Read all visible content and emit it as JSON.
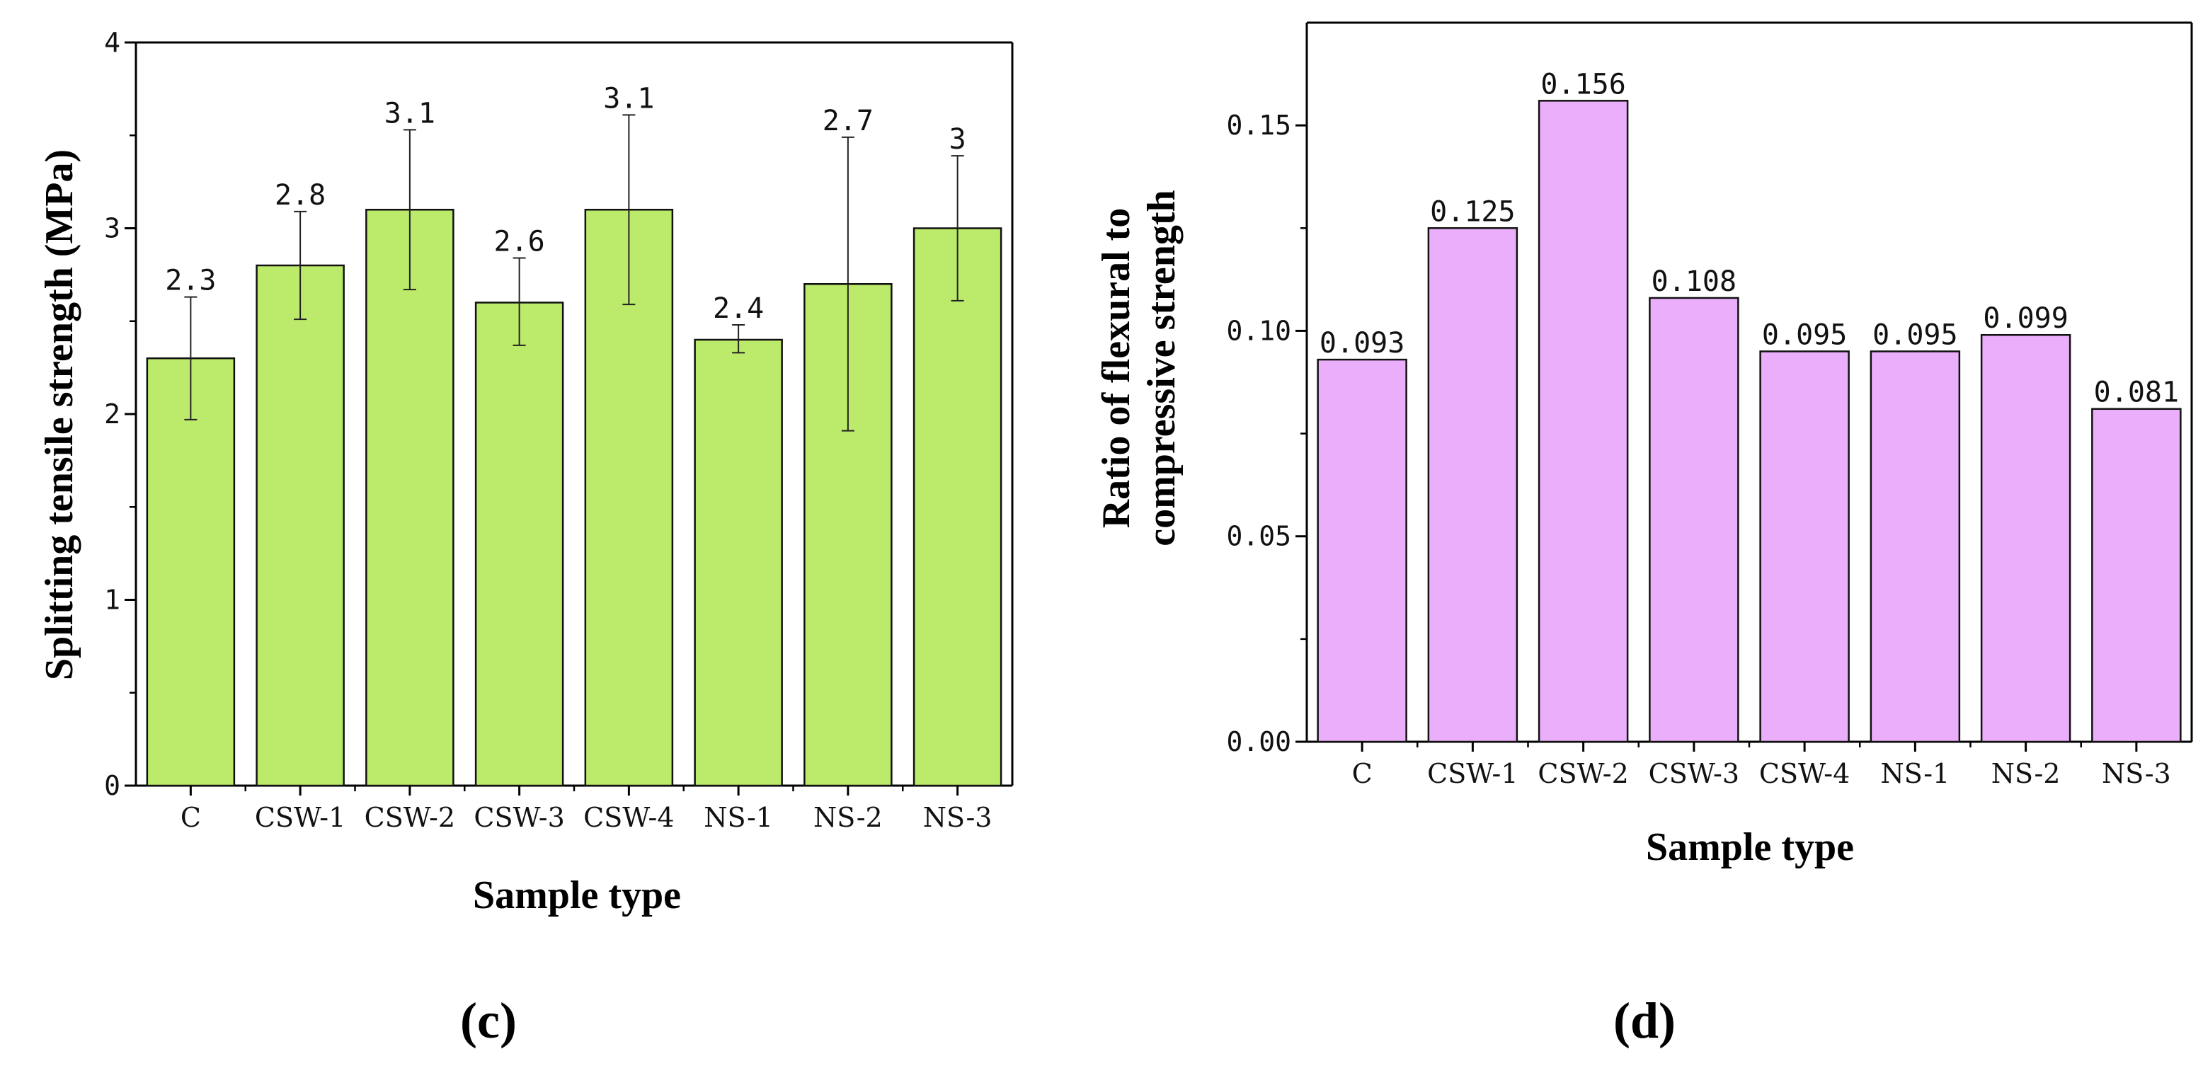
{
  "chart_data": [
    {
      "type": "bar",
      "panel_label": "(c)",
      "title": "",
      "xlabel": "Sample type",
      "ylabel": "Splitting tensile strength (MPa)",
      "ylim": [
        0,
        4
      ],
      "yticks": [
        0,
        1,
        2,
        3,
        4
      ],
      "ytick_labels": [
        "0",
        "1",
        "2",
        "3",
        "4"
      ],
      "categories": [
        "C",
        "CSW-1",
        "CSW-2",
        "CSW-3",
        "CSW-4",
        "NS-1",
        "NS-2",
        "NS-3"
      ],
      "values": [
        2.3,
        2.8,
        3.1,
        2.6,
        3.1,
        2.4,
        2.7,
        3.0
      ],
      "value_labels": [
        "2.3",
        "2.8",
        "3.1",
        "2.6",
        "3.1",
        "2.4",
        "2.7",
        "3"
      ],
      "error_low": [
        1.97,
        2.51,
        2.67,
        2.37,
        2.59,
        2.33,
        1.91,
        2.61
      ],
      "error_high": [
        2.63,
        3.09,
        3.53,
        2.84,
        3.61,
        2.48,
        3.49,
        3.39
      ],
      "bar_color": "#bceb6c",
      "edge_color": "#111111"
    },
    {
      "type": "bar",
      "panel_label": "(d)",
      "title": "",
      "xlabel": "Sample type",
      "ylabel": "Ratio of flexural to compressive strength",
      "ylabel_lines": [
        "Ratio of flexural to",
        "compressive strength"
      ],
      "ylim": [
        0,
        0.175
      ],
      "yticks": [
        0,
        0.05,
        0.1,
        0.15
      ],
      "ytick_labels": [
        "0.00",
        "0.05",
        "0.10",
        "0.15"
      ],
      "categories": [
        "C",
        "CSW-1",
        "CSW-2",
        "CSW-3",
        "CSW-4",
        "NS-1",
        "NS-2",
        "NS-3"
      ],
      "values": [
        0.093,
        0.125,
        0.156,
        0.108,
        0.095,
        0.095,
        0.099,
        0.081
      ],
      "value_labels": [
        "0.093",
        "0.125",
        "0.156",
        "0.108",
        "0.095",
        "0.095",
        "0.099",
        "0.081"
      ],
      "bar_color": "#ebaefb",
      "edge_color": "#111111"
    }
  ]
}
